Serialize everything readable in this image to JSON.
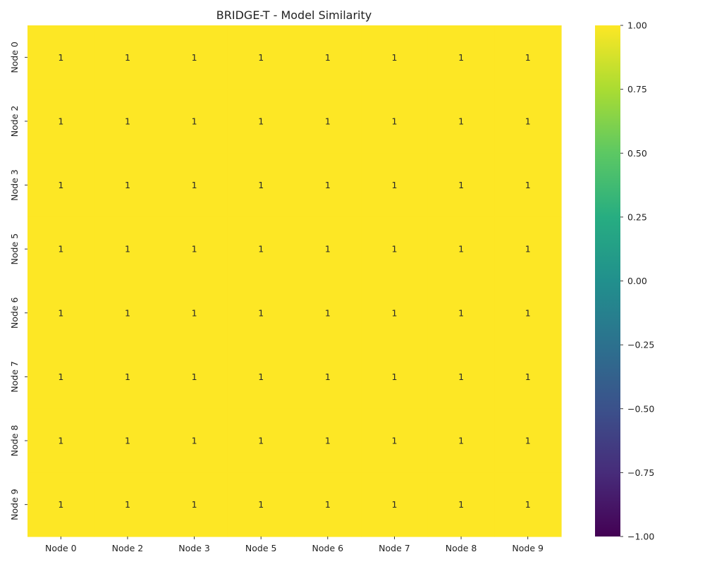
{
  "chart_data": {
    "type": "heatmap",
    "title": "BRIDGE-T - Model Similarity",
    "x_categories": [
      "Node 0",
      "Node 2",
      "Node 3",
      "Node 5",
      "Node 6",
      "Node 7",
      "Node 8",
      "Node 9"
    ],
    "y_categories": [
      "Node 0",
      "Node 2",
      "Node 3",
      "Node 5",
      "Node 6",
      "Node 7",
      "Node 8",
      "Node 9"
    ],
    "values": [
      [
        1,
        1,
        1,
        1,
        1,
        1,
        1,
        1
      ],
      [
        1,
        1,
        1,
        1,
        1,
        1,
        1,
        1
      ],
      [
        1,
        1,
        1,
        1,
        1,
        1,
        1,
        1
      ],
      [
        1,
        1,
        1,
        1,
        1,
        1,
        1,
        1
      ],
      [
        1,
        1,
        1,
        1,
        1,
        1,
        1,
        1
      ],
      [
        1,
        1,
        1,
        1,
        1,
        1,
        1,
        1
      ],
      [
        1,
        1,
        1,
        1,
        1,
        1,
        1,
        1
      ],
      [
        1,
        1,
        1,
        1,
        1,
        1,
        1,
        1
      ]
    ],
    "value_labels": [
      [
        "1",
        "1",
        "1",
        "1",
        "1",
        "1",
        "1",
        "1"
      ],
      [
        "1",
        "1",
        "1",
        "1",
        "1",
        "1",
        "1",
        "1"
      ],
      [
        "1",
        "1",
        "1",
        "1",
        "1",
        "1",
        "1",
        "1"
      ],
      [
        "1",
        "1",
        "1",
        "1",
        "1",
        "1",
        "1",
        "1"
      ],
      [
        "1",
        "1",
        "1",
        "1",
        "1",
        "1",
        "1",
        "1"
      ],
      [
        "1",
        "1",
        "1",
        "1",
        "1",
        "1",
        "1",
        "1"
      ],
      [
        "1",
        "1",
        "1",
        "1",
        "1",
        "1",
        "1",
        "1"
      ],
      [
        "1",
        "1",
        "1",
        "1",
        "1",
        "1",
        "1",
        "1"
      ]
    ],
    "colorscale": "viridis",
    "vmin": -1.0,
    "vmax": 1.0,
    "colorbar_ticks": [
      1.0,
      0.75,
      0.5,
      0.25,
      0.0,
      -0.25,
      -0.5,
      -0.75,
      -1.0
    ],
    "colorbar_tick_labels": [
      "1.00",
      "0.75",
      "0.50",
      "0.25",
      "0.00",
      "−0.25",
      "−0.50",
      "−0.75",
      "−1.00"
    ],
    "grid": false,
    "legend": "colorbar-right"
  }
}
